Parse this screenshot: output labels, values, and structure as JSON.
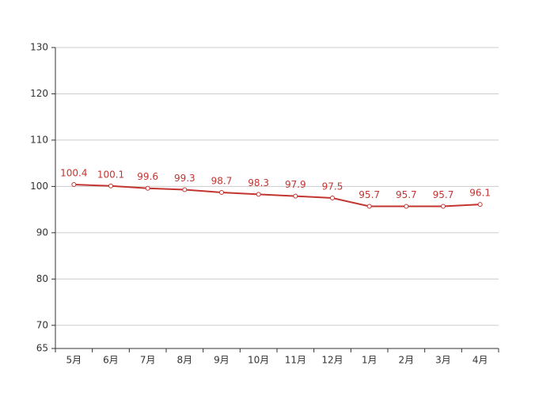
{
  "chart_data": {
    "type": "line",
    "categories": [
      "5月",
      "6月",
      "7月",
      "8月",
      "9月",
      "10月",
      "11月",
      "12月",
      "1月",
      "2月",
      "3月",
      "4月"
    ],
    "values": [
      100.4,
      100.1,
      99.6,
      99.3,
      98.7,
      98.3,
      97.9,
      97.5,
      95.7,
      95.7,
      95.7,
      96.1
    ],
    "color": "#c23531",
    "ylim": [
      65,
      130
    ],
    "yticks": [
      65,
      70,
      80,
      90,
      100,
      110,
      120,
      130
    ],
    "grid": true,
    "data_labels": true
  }
}
